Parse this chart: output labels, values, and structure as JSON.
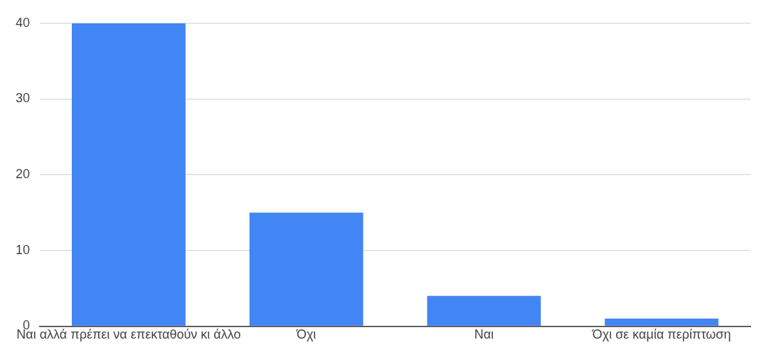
{
  "chart_data": {
    "type": "bar",
    "categories": [
      "Ναι αλλά πρέπει να επεκταθούν κι άλλο",
      "Όχι",
      "Ναι",
      "Όχι σε καμία περίπτωση"
    ],
    "values": [
      40,
      15,
      4,
      1
    ],
    "color": "#4285f4",
    "ylim": [
      0,
      40
    ],
    "yticks": [
      0,
      10,
      20,
      30,
      40
    ],
    "grid": "y",
    "legend": false
  }
}
